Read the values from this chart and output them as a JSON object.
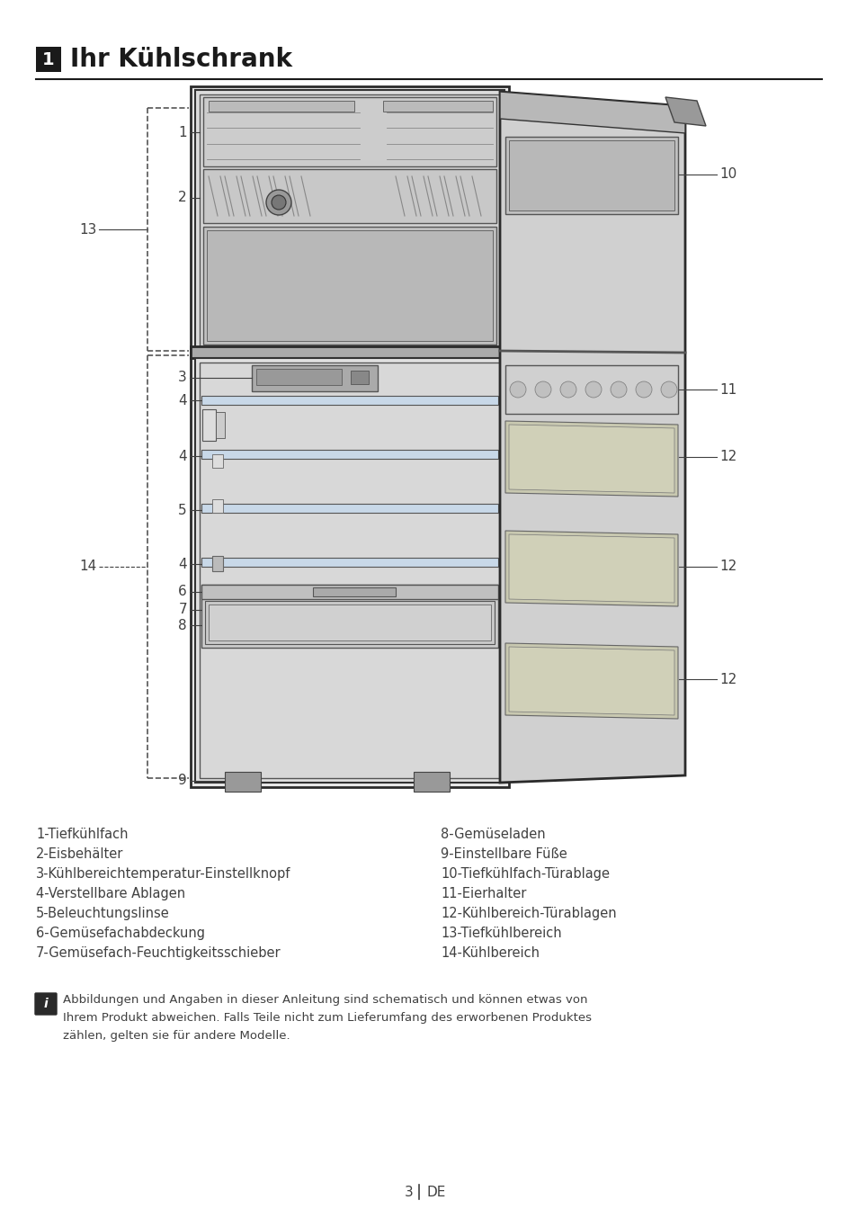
{
  "title_num": "1",
  "title_text": "Ihr Kühlschrank",
  "bg_color": "#ffffff",
  "text_color": "#404040",
  "legend_left": [
    "1-Tiefkühlfach",
    "2-Eisbehälter",
    "3-Kühlbereichtemperatur-Einstellknopf",
    "4-Verstellbare Ablagen",
    "5-Beleuchtungslinse",
    "6-Gemüsefachabdeckung",
    "7-Gemüsefach-Feuchtigkeitsschieber"
  ],
  "legend_right": [
    "8-Gemüseladen",
    "9-Einstellbare Füße",
    "10-Tiefkühlfach-Türablage",
    "11-Eierhalter",
    "12-Kühlbereich-Türablagen",
    "13-Tiefkühlbereich",
    "14-Kühlbereich"
  ],
  "note_text": "Abbildungen und Angaben in dieser Anleitung sind schematisch und können etwas von\nIhrem Produkt abweichen. Falls Teile nicht zum Lieferumfang des erworbenen Produktes\nzählen, gelten sie für andere Modelle.",
  "page_num": "3",
  "page_lang": "DE"
}
